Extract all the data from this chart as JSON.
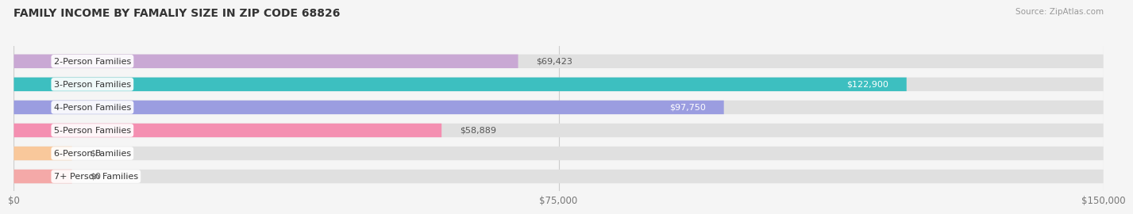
{
  "title": "FAMILY INCOME BY FAMALIY SIZE IN ZIP CODE 68826",
  "source": "Source: ZipAtlas.com",
  "categories": [
    "2-Person Families",
    "3-Person Families",
    "4-Person Families",
    "5-Person Families",
    "6-Person Families",
    "7+ Person Families"
  ],
  "values": [
    69423,
    122900,
    97750,
    58889,
    0,
    0
  ],
  "bar_colors": [
    "#c9a8d4",
    "#3dbfc0",
    "#9b9de0",
    "#f48fb1",
    "#f9c89b",
    "#f4a9a8"
  ],
  "label_colors": [
    "#555555",
    "#ffffff",
    "#ffffff",
    "#555555",
    "#555555",
    "#555555"
  ],
  "x_ticks": [
    0,
    75000,
    150000
  ],
  "x_tick_labels": [
    "$0",
    "$75,000",
    "$150,000"
  ],
  "xlim": [
    0,
    150000
  ],
  "background_color": "#f5f5f5",
  "bar_bg_color": "#e0e0e0",
  "value_labels": [
    "$69,423",
    "$122,900",
    "$97,750",
    "$58,889",
    "$0",
    "$0"
  ]
}
